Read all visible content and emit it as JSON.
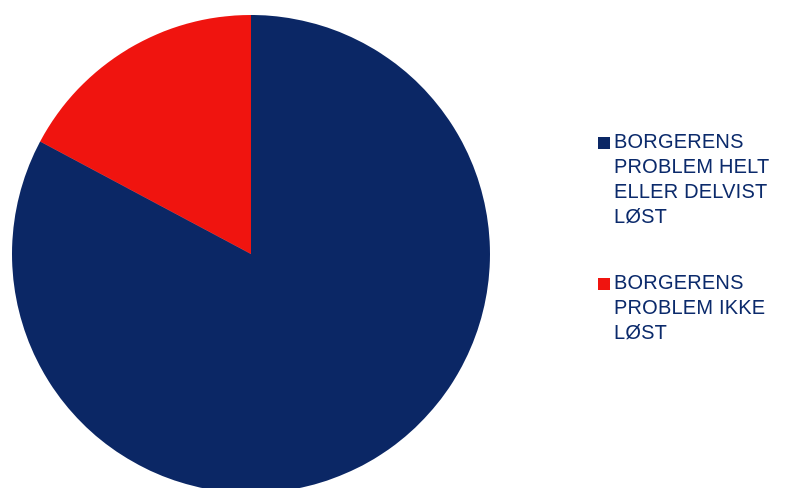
{
  "chart_data": {
    "type": "pie",
    "title": "",
    "slices": [
      {
        "label": "BORGERENS PROBLEM HELT ELLER DELVIST LØST",
        "value": 82.8,
        "color": "#0b2765"
      },
      {
        "label": "BORGERENS PROBLEM IKKE LØST",
        "value": 17.2,
        "color": "#f0140f"
      }
    ],
    "start_angle_deg": 0,
    "direction": "clockwise",
    "legend_position": "right"
  }
}
